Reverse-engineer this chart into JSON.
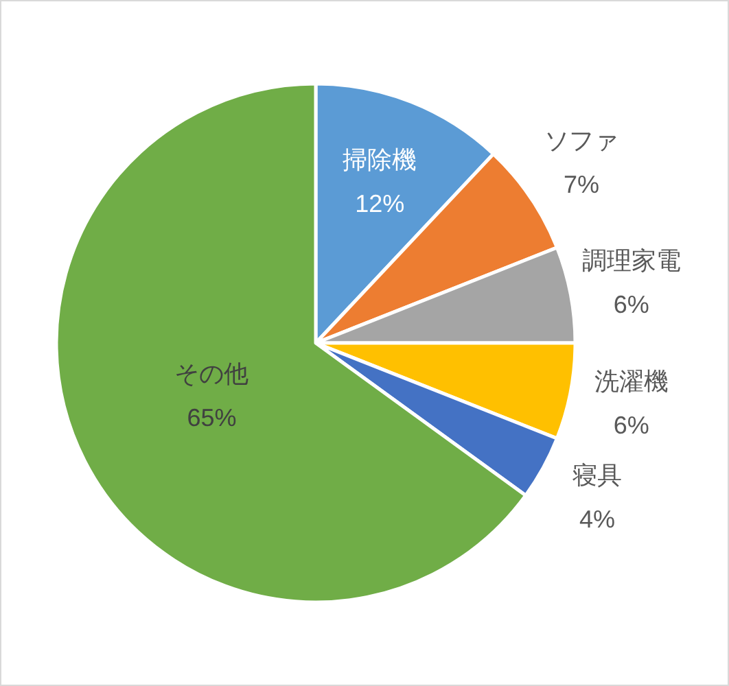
{
  "chart_data": {
    "type": "pie",
    "categories": [
      "掃除機",
      "ソファ",
      "調理家電",
      "洗濯機",
      "寝具",
      "その他"
    ],
    "values": [
      12,
      7,
      6,
      6,
      4,
      65
    ],
    "value_labels": [
      "12%",
      "7%",
      "6%",
      "6%",
      "4%",
      "65%"
    ],
    "colors": [
      "#5b9bd5",
      "#ed7d31",
      "#a5a5a5",
      "#ffc000",
      "#4472c4",
      "#70ad47"
    ]
  }
}
